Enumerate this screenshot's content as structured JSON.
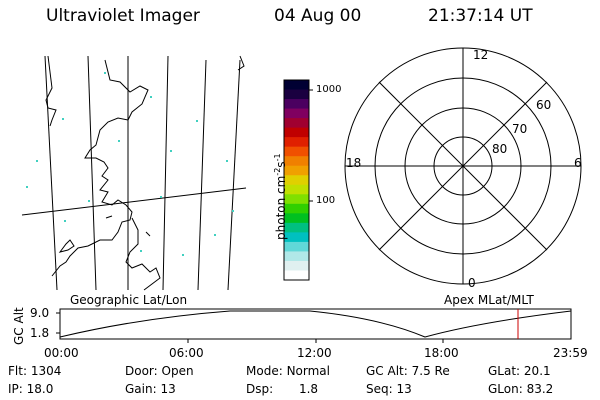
{
  "header": {
    "instrument": "Ultraviolet Imager",
    "date": "04 Aug 00",
    "time": "21:37:14 UT"
  },
  "colorbar": {
    "unit_label": "photon cm",
    "unit_exp1": "-2",
    "unit_s": "s",
    "unit_exp2": "-1",
    "ticks": [
      "1000",
      "100"
    ],
    "colors": [
      "#000033",
      "#1a0040",
      "#4b0060",
      "#800060",
      "#a00030",
      "#c00000",
      "#e02000",
      "#f05000",
      "#f08000",
      "#f0a000",
      "#e0d000",
      "#c0e000",
      "#80e000",
      "#30d000",
      "#00c020",
      "#00c080",
      "#00c0c0",
      "#60d8d8",
      "#b0e8e8",
      "#e0f0f0",
      "#ffffff"
    ]
  },
  "map_left": {
    "caption": "Geographic Lat/Lon"
  },
  "map_right": {
    "caption": "Apex MLat/MLT",
    "mlt_labels": {
      "top": "12",
      "left": "18",
      "right": "6",
      "bottom": "0"
    },
    "lat_labels": [
      "60",
      "70",
      "80"
    ]
  },
  "altitude_plot": {
    "ylabel": "GC Alt",
    "y_ticks": [
      "9.0",
      "1.8"
    ],
    "x_ticks": [
      "00:00",
      "06:00",
      "12:00",
      "18:00",
      "23:59"
    ],
    "marker_color": "#cc0000"
  },
  "info": {
    "flt_label": "Flt:",
    "flt_value": "1304",
    "ip_label": "IP:",
    "ip_value": "18.0",
    "door_label": "Door:",
    "door_value": "Open",
    "gain_label": "Gain:",
    "gain_value": "13",
    "mode_label": "Mode:",
    "mode_value": "Normal",
    "dsp_label": "Dsp:",
    "dsp_value": "1.8",
    "gcalt_label": "GC Alt:",
    "gcalt_value": "7.5 Re",
    "seq_label": "Seq:",
    "seq_value": "13",
    "glat_label": "GLat:",
    "glat_value": "20.1",
    "glon_label": "GLon:",
    "glon_value": "83.2"
  }
}
